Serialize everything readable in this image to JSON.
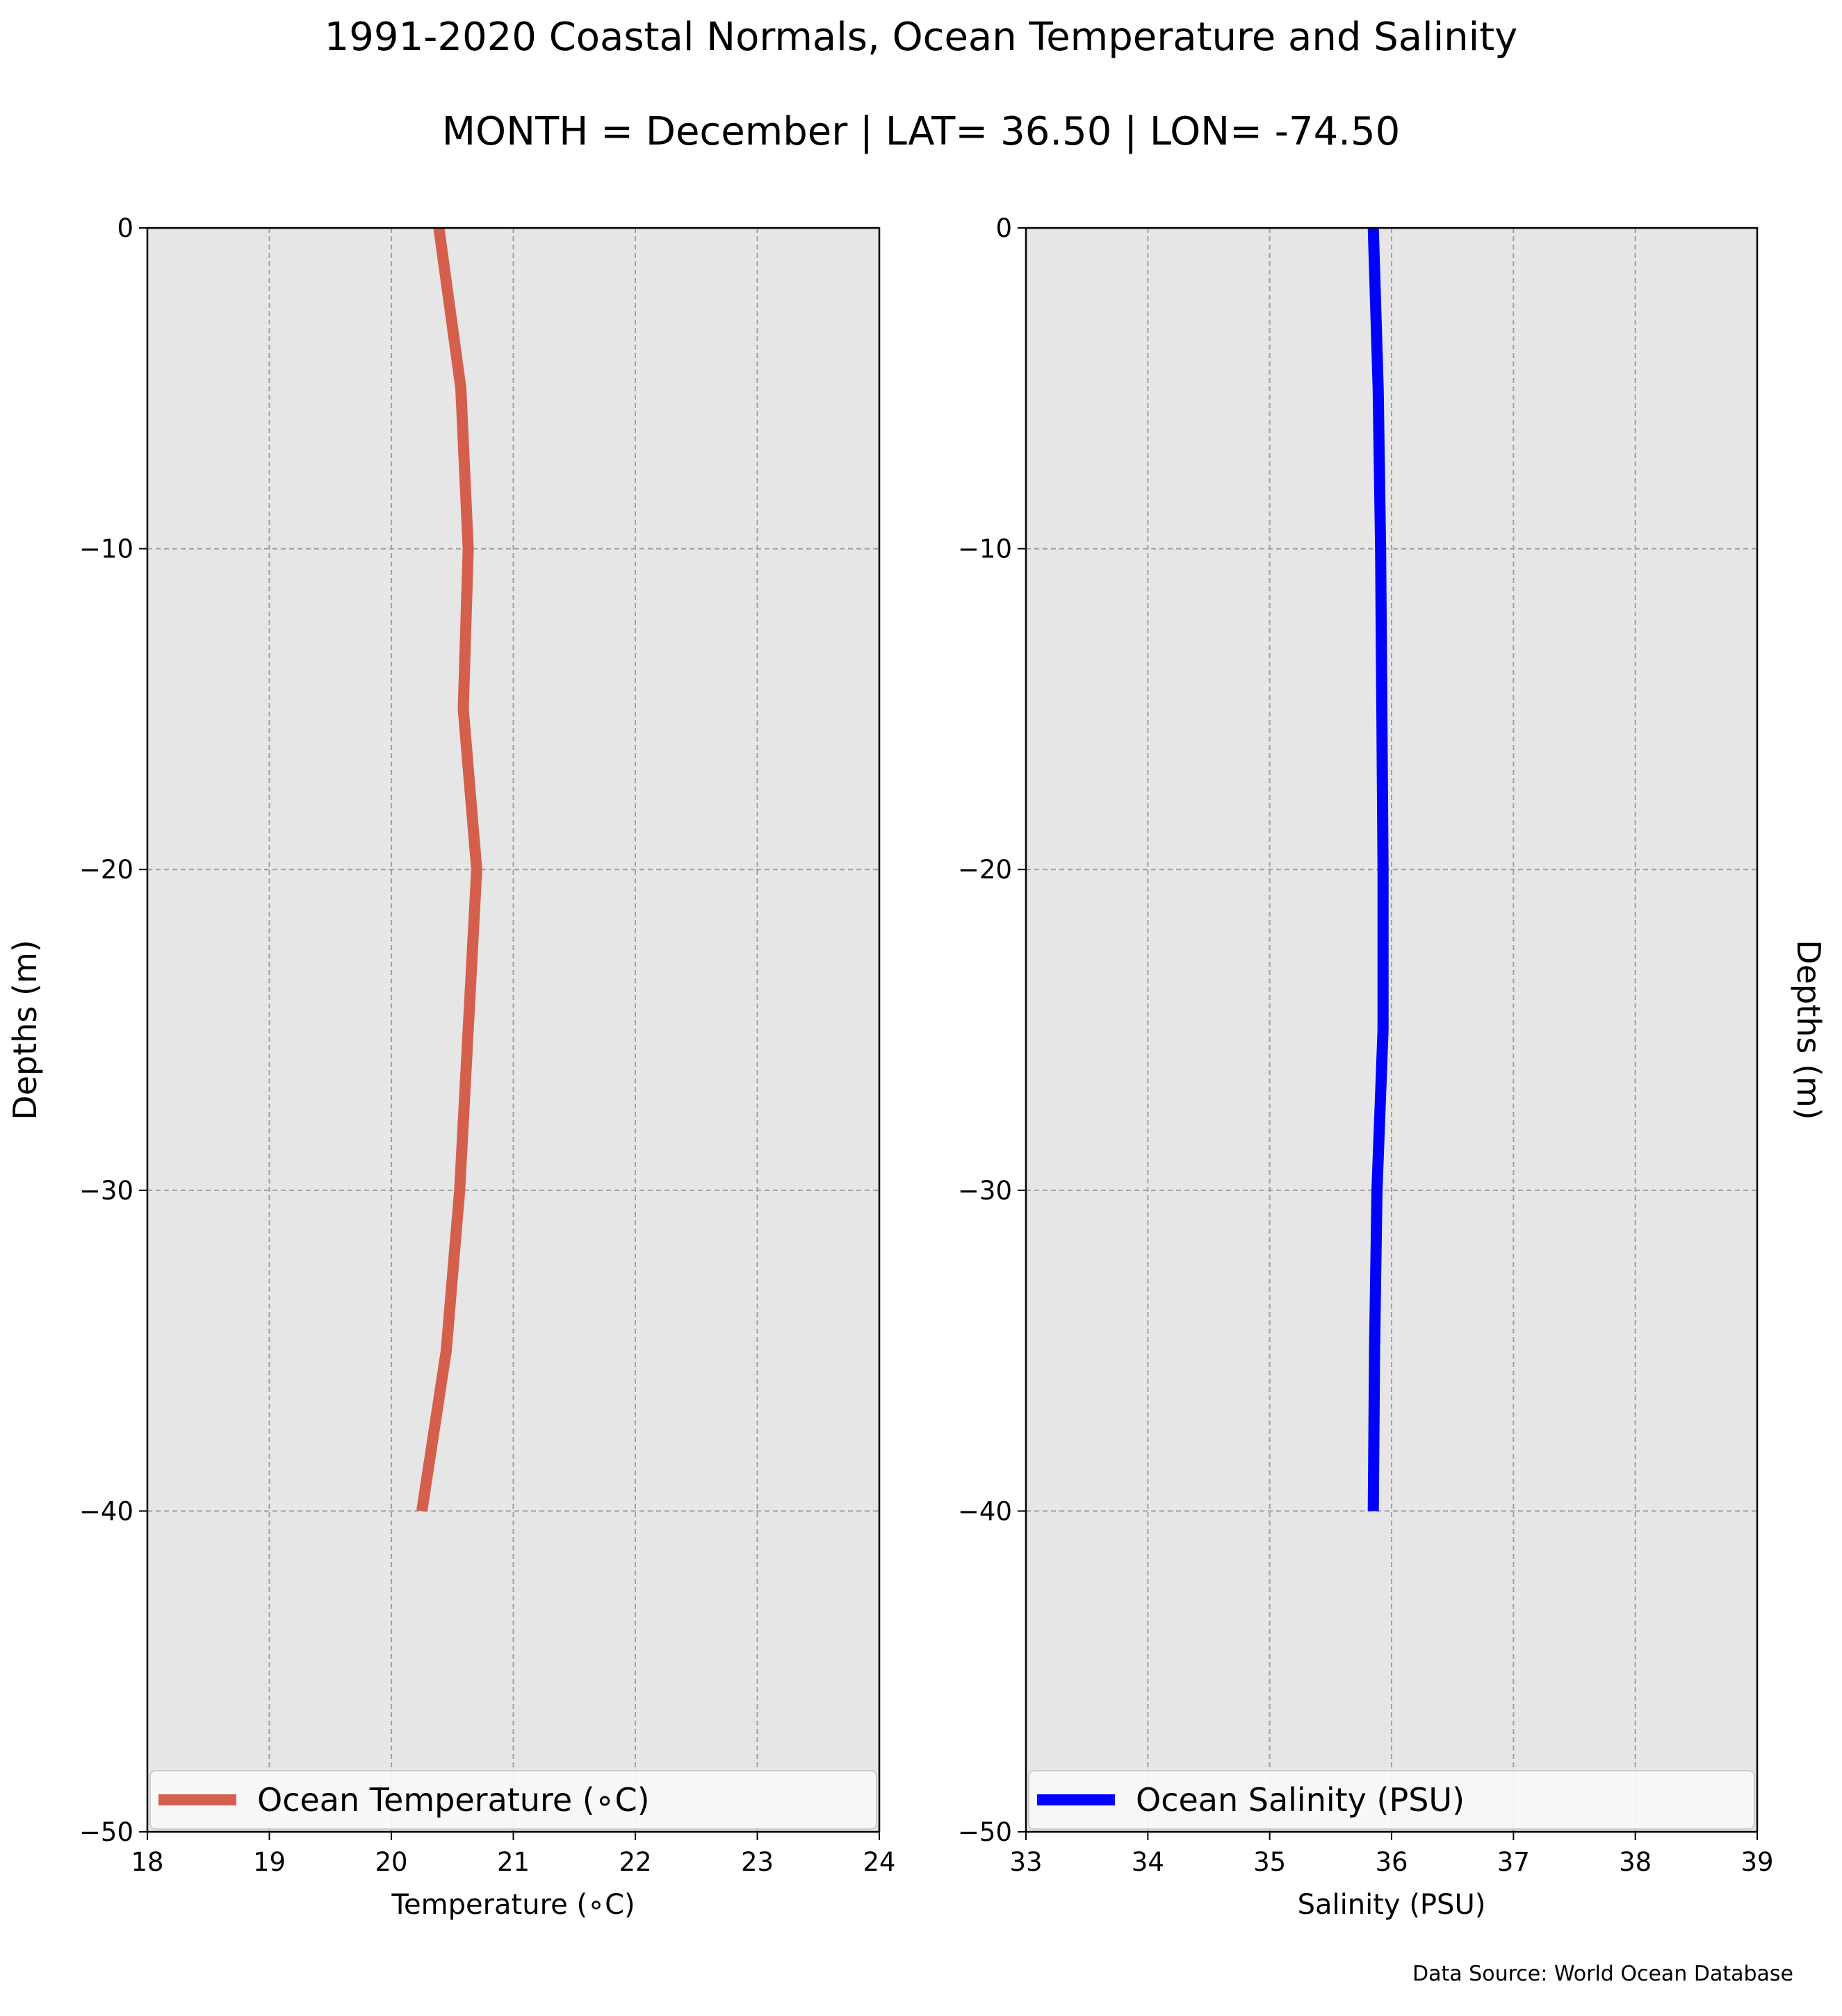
{
  "title": "1991-2020 Coastal Normals, Ocean Temperature and Salinity",
  "subtitle": "MONTH = December | LAT= 36.50 | LON= -74.50",
  "source": "Data Source: World Ocean Database",
  "colors": {
    "panel_bg": "#e6e6e6",
    "grid": "#a0a0a0",
    "temperature": "#d45f4d",
    "salinity": "#0000ff"
  },
  "chart_data": [
    {
      "type": "line",
      "xlabel": "Temperature (∘C)",
      "ylabel": "Depths (m)",
      "xlim": [
        18,
        24
      ],
      "ylim": [
        -50,
        0
      ],
      "xticks": [
        "18",
        "19",
        "20",
        "21",
        "22",
        "23",
        "24"
      ],
      "yticks": [
        "0",
        "−10",
        "−20",
        "−30",
        "−40",
        "−50"
      ],
      "grid": true,
      "legend_position": "bottom",
      "series": [
        {
          "name": "Ocean Temperature (∘C)",
          "color": "#d45f4d",
          "x": [
            20.39,
            20.57,
            20.63,
            20.59,
            20.7,
            20.56,
            20.45,
            20.25
          ],
          "y": [
            0,
            -5,
            -10,
            -15,
            -20,
            -30,
            -35,
            -40
          ]
        }
      ]
    },
    {
      "type": "line",
      "xlabel": "Salinity (PSU)",
      "ylabel": "Depths (m)",
      "xlim": [
        33,
        39
      ],
      "ylim": [
        -50,
        0
      ],
      "xticks": [
        "33",
        "34",
        "35",
        "36",
        "37",
        "38",
        "39"
      ],
      "yticks": [
        "0",
        "−10",
        "−20",
        "−30",
        "−40",
        "−50"
      ],
      "grid": true,
      "legend_position": "bottom",
      "series": [
        {
          "name": "Ocean Salinity (PSU)",
          "color": "#0000ff",
          "x": [
            35.85,
            35.89,
            35.91,
            35.92,
            35.93,
            35.93,
            35.88,
            35.86,
            35.85
          ],
          "y": [
            0,
            -5,
            -10,
            -15,
            -20,
            -25,
            -30,
            -35,
            -40
          ]
        }
      ]
    }
  ]
}
